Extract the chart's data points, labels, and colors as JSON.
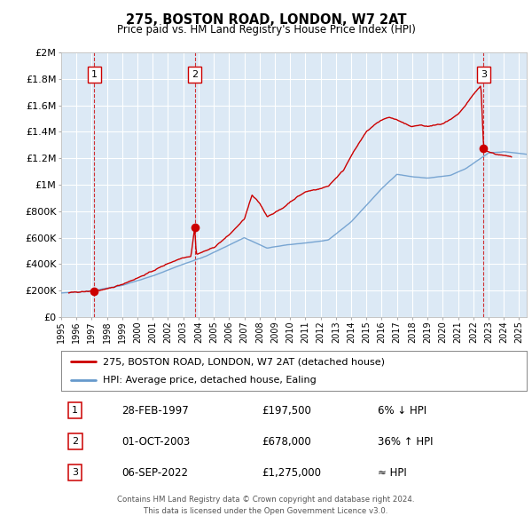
{
  "title": "275, BOSTON ROAD, LONDON, W7 2AT",
  "subtitle": "Price paid vs. HM Land Registry's House Price Index (HPI)",
  "legend_label_red": "275, BOSTON ROAD, LONDON, W7 2AT (detached house)",
  "legend_label_blue": "HPI: Average price, detached house, Ealing",
  "footer1": "Contains HM Land Registry data © Crown copyright and database right 2024.",
  "footer2": "This data is licensed under the Open Government Licence v3.0.",
  "transactions": [
    {
      "num": 1,
      "date": "28-FEB-1997",
      "price": 197500,
      "label": "6% ↓ HPI",
      "x_year": 1997.16
    },
    {
      "num": 2,
      "date": "01-OCT-2003",
      "price": 678000,
      "label": "36% ↑ HPI",
      "x_year": 2003.75
    },
    {
      "num": 3,
      "date": "06-SEP-2022",
      "price": 1275000,
      "label": "≈ HPI",
      "x_year": 2022.68
    }
  ],
  "background_color": "#dce9f5",
  "plot_bg_color": "#dce9f5",
  "red_color": "#cc0000",
  "blue_color": "#6699cc",
  "grid_color": "#ffffff",
  "ylim": [
    0,
    2000000
  ],
  "xlim_start": 1995.0,
  "xlim_end": 2025.5,
  "yticks": [
    0,
    200000,
    400000,
    600000,
    800000,
    1000000,
    1200000,
    1400000,
    1600000,
    1800000,
    2000000
  ],
  "ytick_labels": [
    "£0",
    "£200K",
    "£400K",
    "£600K",
    "£800K",
    "£1M",
    "£1.2M",
    "£1.4M",
    "£1.6M",
    "£1.8M",
    "£2M"
  ]
}
